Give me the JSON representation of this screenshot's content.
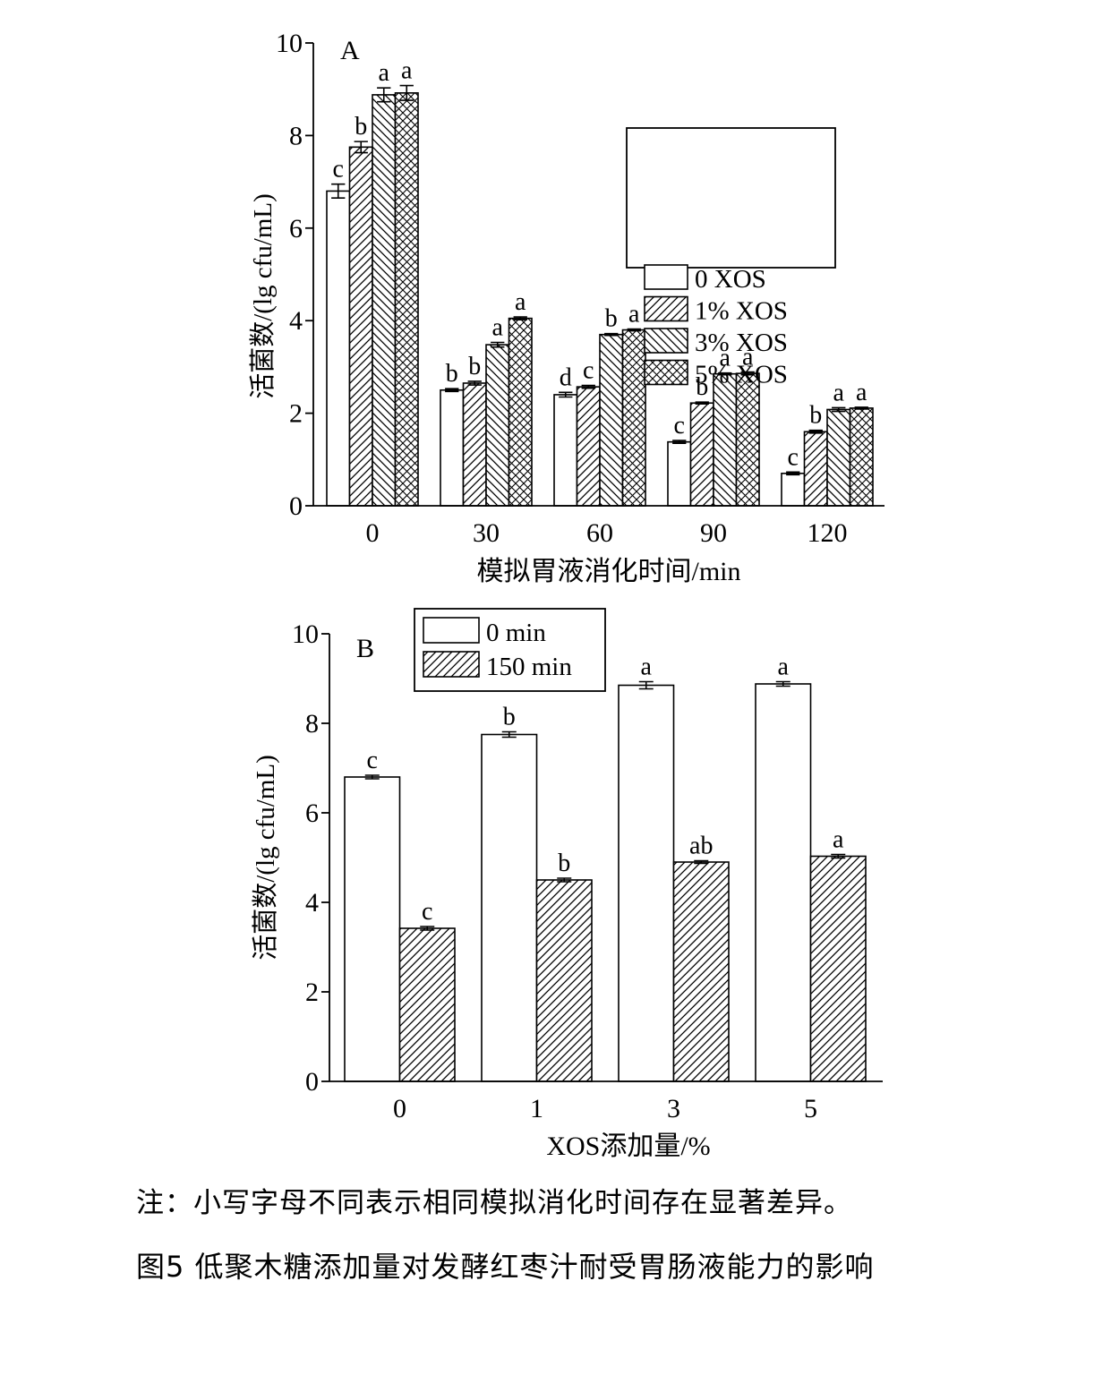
{
  "chart_data": [
    {
      "type": "bar",
      "panel_label": "A",
      "xlabel": "模拟胃液消化时间/min",
      "ylabel": "活菌数/(lg cfu/mL)",
      "ylim": [
        0,
        10
      ],
      "yticks": [
        "0",
        "2",
        "4",
        "6",
        "8",
        "10"
      ],
      "categories": [
        "0",
        "30",
        "60",
        "90",
        "120"
      ],
      "legend_position": "top-right",
      "series": [
        {
          "name": "0 XOS",
          "pattern": "none",
          "values": [
            6.8,
            2.5,
            2.4,
            1.38,
            0.7
          ],
          "errors": [
            0.15,
            0.03,
            0.05,
            0.03,
            0.03
          ],
          "labels": [
            "c",
            "b",
            "d",
            "c",
            "c"
          ]
        },
        {
          "name": "1% XOS",
          "pattern": "diag-right",
          "values": [
            7.75,
            2.65,
            2.57,
            2.22,
            1.6
          ],
          "errors": [
            0.12,
            0.04,
            0.03,
            0.02,
            0.03
          ],
          "labels": [
            "b",
            "b",
            "c",
            "b",
            "b"
          ]
        },
        {
          "name": "3% XOS",
          "pattern": "diag-left",
          "values": [
            8.88,
            3.48,
            3.7,
            2.85,
            2.08
          ],
          "errors": [
            0.15,
            0.05,
            0.02,
            0.02,
            0.04
          ],
          "labels": [
            "a",
            "a",
            "b",
            "a",
            "a"
          ]
        },
        {
          "name": "5% XOS",
          "pattern": "cross",
          "values": [
            8.92,
            4.05,
            3.8,
            2.86,
            2.11
          ],
          "errors": [
            0.16,
            0.03,
            0.02,
            0.03,
            0.02
          ],
          "labels": [
            "a",
            "a",
            "a",
            "a",
            "a"
          ]
        }
      ]
    },
    {
      "type": "bar",
      "panel_label": "B",
      "xlabel": "XOS添加量/%",
      "ylabel": "活菌数/(lg cfu/mL)",
      "ylim": [
        0,
        10
      ],
      "yticks": [
        "0",
        "2",
        "4",
        "6",
        "8",
        "10"
      ],
      "categories": [
        "0",
        "1",
        "3",
        "5"
      ],
      "legend_position": "top-left",
      "series": [
        {
          "name": "0 min",
          "pattern": "none",
          "values": [
            6.8,
            7.75,
            8.85,
            8.88
          ],
          "errors": [
            0.04,
            0.06,
            0.08,
            0.05
          ],
          "labels": [
            "c",
            "b",
            "a",
            "a"
          ]
        },
        {
          "name": "150 min",
          "pattern": "diag-right",
          "values": [
            3.42,
            4.5,
            4.9,
            5.03
          ],
          "errors": [
            0.04,
            0.04,
            0.03,
            0.04
          ],
          "labels": [
            "c",
            "b",
            "ab",
            "a"
          ]
        }
      ]
    }
  ],
  "note": "注：小写字母不同表示相同模拟消化时间存在显著差异。",
  "caption": "图5   低聚木糖添加量对发酵红枣汁耐受胃肠液能力的影响"
}
